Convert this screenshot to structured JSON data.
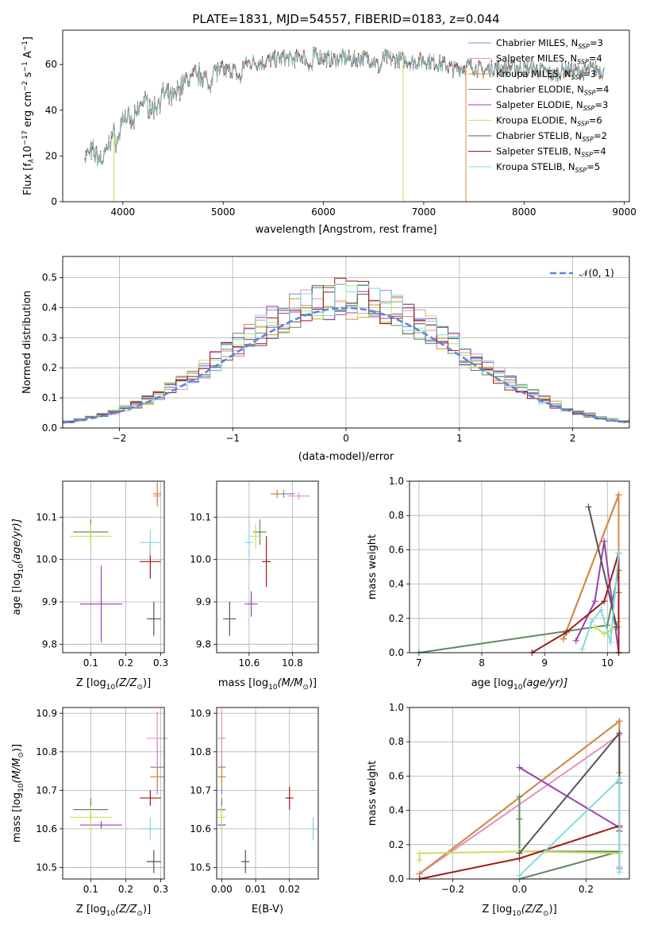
{
  "figure": {
    "title": "PLATE=1831, MJD=54557, FIBERID=0183, z=0.044",
    "series": [
      {
        "name": "Chabrier MILES",
        "nssp": "3",
        "color": "#6b8fd6"
      },
      {
        "name": "Salpeter MILES",
        "nssp": "4",
        "color": "#e58fc0"
      },
      {
        "name": "Kroupa MILES",
        "nssp": "3",
        "color": "#d88a3a"
      },
      {
        "name": "Chabrier ELODIE",
        "nssp": "4",
        "color": "#5f8a62"
      },
      {
        "name": "Salpeter ELODIE",
        "nssp": "3",
        "color": "#9b3fb4"
      },
      {
        "name": "Kroupa ELODIE",
        "nssp": "6",
        "color": "#c8e05a"
      },
      {
        "name": "Chabrier STELIB",
        "nssp": "2",
        "color": "#555555"
      },
      {
        "name": "Salpeter STELIB",
        "nssp": "4",
        "color": "#a01a1a"
      },
      {
        "name": "Kroupa STELIB",
        "nssp": "5",
        "color": "#86d8dc"
      }
    ]
  },
  "chart_data": [
    {
      "id": "spectrum",
      "type": "line",
      "xlabel": "wavelength [Angstrom, rest frame]",
      "ylabel": "Flux [f",
      "ylabel_parts": {
        "lambda_sub": "λ",
        "scale": "10",
        "scale_exp": "−17",
        "units": " erg cm",
        "cm_exp": "−2",
        "s": " s",
        "s_exp": "−1",
        "A": " A",
        "A_exp": "−1",
        "close": "]"
      },
      "xlim": [
        3400,
        9050
      ],
      "ylim": [
        0,
        75
      ],
      "xticks": [
        4000,
        5000,
        6000,
        7000,
        8000,
        9000
      ],
      "yticks": [
        0,
        20,
        40,
        60
      ],
      "legend_position": "top-right",
      "grid": false,
      "spectrum_envelope": {
        "x": [
          3620,
          3700,
          3800,
          3900,
          3950,
          4000,
          4100,
          4200,
          4300,
          4400,
          4500,
          4600,
          4700,
          4800,
          4860,
          4900,
          5000,
          5100,
          5175,
          5200,
          5300,
          5400,
          5500,
          5600,
          5700,
          5800,
          5890,
          5900,
          6000,
          6100,
          6200,
          6300,
          6400,
          6500,
          6563,
          6600,
          6700,
          6800,
          6900,
          7000,
          7100,
          7200,
          7300,
          7400,
          7500,
          7600,
          7700,
          7800,
          7900,
          8000,
          8100,
          8200,
          8300,
          8400,
          8500,
          8600,
          8700,
          8800
        ],
        "y": [
          20,
          22,
          18,
          30,
          26,
          38,
          34,
          45,
          40,
          47,
          45,
          52,
          55,
          56,
          50,
          58,
          57,
          58,
          53,
          60,
          61,
          61,
          62,
          63,
          62,
          64,
          58,
          64,
          63,
          62,
          63,
          62,
          63,
          62,
          58,
          63,
          62,
          62,
          61,
          62,
          61,
          60,
          58,
          59,
          59,
          57,
          59,
          58,
          59,
          58,
          58,
          57,
          55,
          58,
          57,
          57,
          58,
          57
        ]
      },
      "dropouts": [
        {
          "x": 3910,
          "y": 0
        },
        {
          "x": 6795,
          "y": 0
        },
        {
          "x": 7420,
          "y": 0
        }
      ]
    },
    {
      "id": "residuals",
      "type": "bar",
      "xlabel": "(data-model)/error",
      "ylabel": "Normed distribution",
      "xlim": [
        -2.5,
        2.5
      ],
      "ylim": [
        0,
        0.57
      ],
      "xticks": [
        -2,
        -1,
        0,
        1,
        2
      ],
      "yticks": [
        0.0,
        0.1,
        0.2,
        0.3,
        0.4,
        0.5
      ],
      "grid": true,
      "legend_position": "top-right",
      "gaussian_label": "𝒩(0, 1)",
      "bin_width": 0.1,
      "bin_start": -2.5
    },
    {
      "id": "age-vs-Z",
      "type": "scatter",
      "xlabel": "Z [log",
      "xlabel_tail": "(Z/Z",
      "xlabel_end": ")]",
      "ylabel": "age  [log",
      "ylabel_tail": "(age/yr)]",
      "xlim": [
        0.02,
        0.31
      ],
      "ylim": [
        9.78,
        10.185
      ],
      "xticks": [
        0.1,
        0.2,
        0.3
      ],
      "yticks": [
        9.8,
        9.9,
        10.0,
        10.1
      ],
      "grid": true,
      "points": [
        {
          "series": 0,
          "x": 0.29,
          "y": 10.155,
          "ex": 0.01,
          "ey": 0.02
        },
        {
          "series": 1,
          "x": 0.29,
          "y": 10.15,
          "ex": 0.01,
          "ey": 0.02
        },
        {
          "series": 2,
          "x": 0.29,
          "y": 10.155,
          "ex": 0.01,
          "ey": 0.03
        },
        {
          "series": 3,
          "x": 0.1,
          "y": 10.065,
          "ex": 0.05,
          "ey": 0.03
        },
        {
          "series": 4,
          "x": 0.13,
          "y": 9.895,
          "ex": 0.06,
          "ey": 0.09
        },
        {
          "series": 5,
          "x": 0.1,
          "y": 10.055,
          "ex": 0.06,
          "ey": 0.03
        },
        {
          "series": 6,
          "x": 0.28,
          "y": 9.86,
          "ex": 0.02,
          "ey": 0.04
        },
        {
          "series": 7,
          "x": 0.27,
          "y": 9.995,
          "ex": 0.03,
          "ey": 0.04
        },
        {
          "series": 8,
          "x": 0.27,
          "y": 10.04,
          "ex": 0.03,
          "ey": 0.03
        }
      ]
    },
    {
      "id": "age-vs-mass",
      "type": "scatter",
      "xlabel": "mass [log",
      "xlabel_tail": "(M/M",
      "xlabel_end": ")]",
      "xlim": [
        10.45,
        10.92
      ],
      "ylim": [
        9.78,
        10.185
      ],
      "xticks": [
        10.6,
        10.8
      ],
      "yticks": [
        9.8,
        9.9,
        10.0,
        10.1
      ],
      "grid": true,
      "points": [
        {
          "series": 0,
          "x": 10.76,
          "y": 10.155,
          "ex": 0.05,
          "ey": 0.0
        },
        {
          "series": 1,
          "x": 10.83,
          "y": 10.15,
          "ex": 0.05,
          "ey": 0.0
        },
        {
          "series": 2,
          "x": 10.73,
          "y": 10.155,
          "ex": 0.03,
          "ey": 0.01
        },
        {
          "series": 3,
          "x": 10.65,
          "y": 10.065,
          "ex": 0.03,
          "ey": 0.03
        },
        {
          "series": 4,
          "x": 10.61,
          "y": 9.895,
          "ex": 0.03,
          "ey": 0.03
        },
        {
          "series": 5,
          "x": 10.63,
          "y": 10.055,
          "ex": 0.03,
          "ey": 0.03
        },
        {
          "series": 6,
          "x": 10.51,
          "y": 9.86,
          "ex": 0.03,
          "ey": 0.04
        },
        {
          "series": 7,
          "x": 10.68,
          "y": 9.995,
          "ex": 0.02,
          "ey": 0.06
        },
        {
          "series": 8,
          "x": 10.6,
          "y": 10.04,
          "ex": 0.02,
          "ey": 0.05
        }
      ]
    },
    {
      "id": "weight-vs-age",
      "type": "line",
      "xlabel": "age  [log",
      "xlabel_tail": "(age/yr)]",
      "ylabel": "mass weight",
      "xlim": [
        6.85,
        10.35
      ],
      "ylim": [
        0,
        1.0
      ],
      "xticks": [
        7,
        8,
        9,
        10
      ],
      "yticks": [
        0.0,
        0.2,
        0.4,
        0.6,
        0.8,
        1.0
      ],
      "grid": true,
      "lines": [
        {
          "series": 0,
          "x": [
            9.3,
            10.18
          ],
          "y": [
            0.08,
            0.92
          ]
        },
        {
          "series": 1,
          "x": [
            9.3,
            10.18,
            10.18
          ],
          "y": [
            0.08,
            0.92,
            0.0
          ]
        },
        {
          "series": 2,
          "x": [
            9.3,
            10.18,
            10.18
          ],
          "y": [
            0.08,
            0.92,
            0.0
          ]
        },
        {
          "series": 3,
          "x": [
            7.0,
            10.0,
            10.18,
            10.18
          ],
          "y": [
            0.0,
            0.16,
            0.48,
            0.35
          ]
        },
        {
          "series": 4,
          "x": [
            9.5,
            9.8,
            9.95,
            10.18
          ],
          "y": [
            0.07,
            0.3,
            0.65,
            0.0
          ]
        },
        {
          "series": 5,
          "x": [
            9.8,
            9.95,
            10.05,
            10.18,
            10.18
          ],
          "y": [
            0.15,
            0.11,
            0.13,
            0.18,
            0.15
          ]
        },
        {
          "series": 6,
          "x": [
            9.7,
            10.15
          ],
          "y": [
            0.85,
            0.15
          ]
        },
        {
          "series": 7,
          "x": [
            8.8,
            9.35,
            9.95,
            10.18,
            10.18
          ],
          "y": [
            0.0,
            0.12,
            0.3,
            0.58,
            0.0
          ]
        },
        {
          "series": 8,
          "x": [
            9.6,
            9.75,
            9.9,
            10.05,
            10.18
          ],
          "y": [
            0.02,
            0.18,
            0.25,
            0.06,
            0.58
          ]
        }
      ]
    },
    {
      "id": "mass-vs-Z",
      "type": "scatter",
      "xlabel": "Z [log",
      "xlabel_tail": "(Z/Z",
      "xlabel_end": ")]",
      "ylabel": "mass [log",
      "ylabel_tail": "(M/M",
      "ylabel_end": ")]",
      "xlim": [
        0.02,
        0.31
      ],
      "ylim": [
        10.47,
        10.915
      ],
      "xticks": [
        0.1,
        0.2,
        0.3
      ],
      "yticks": [
        10.5,
        10.6,
        10.7,
        10.8,
        10.9
      ],
      "grid": true,
      "points": [
        {
          "series": 0,
          "x": 0.29,
          "y": 10.76,
          "ex": 0.02,
          "ey": 0.07
        },
        {
          "series": 1,
          "x": 0.29,
          "y": 10.835,
          "ex": 0.03,
          "ey": 0.07
        },
        {
          "series": 2,
          "x": 0.29,
          "y": 10.735,
          "ex": 0.02,
          "ey": 0.03
        },
        {
          "series": 3,
          "x": 0.1,
          "y": 10.65,
          "ex": 0.05,
          "ey": 0.03
        },
        {
          "series": 4,
          "x": 0.13,
          "y": 10.61,
          "ex": 0.06,
          "ey": 0.01
        },
        {
          "series": 5,
          "x": 0.1,
          "y": 10.63,
          "ex": 0.06,
          "ey": 0.03
        },
        {
          "series": 6,
          "x": 0.28,
          "y": 10.515,
          "ex": 0.02,
          "ey": 0.03
        },
        {
          "series": 7,
          "x": 0.27,
          "y": 10.68,
          "ex": 0.03,
          "ey": 0.02
        },
        {
          "series": 8,
          "x": 0.27,
          "y": 10.6,
          "ex": 0.03,
          "ey": 0.03
        }
      ]
    },
    {
      "id": "mass-vs-ebv",
      "type": "scatter",
      "xlabel": "E(B-V)",
      "xlim": [
        -0.0015,
        0.0285
      ],
      "ylim": [
        10.47,
        10.915
      ],
      "xticks": [
        0.0,
        0.01,
        0.02
      ],
      "xticklabels": [
        "0.00",
        "0.01",
        "0.02"
      ],
      "yticks": [
        10.5,
        10.6,
        10.7,
        10.8,
        10.9
      ],
      "grid": true,
      "points": [
        {
          "series": 0,
          "x": 0.0,
          "y": 10.76,
          "ex": 0.0,
          "ey": 0.07
        },
        {
          "series": 1,
          "x": 0.0,
          "y": 10.835,
          "ex": 0.0,
          "ey": 0.07
        },
        {
          "series": 2,
          "x": 0.0,
          "y": 10.735,
          "ex": 0.0,
          "ey": 0.03
        },
        {
          "series": 3,
          "x": 0.0,
          "y": 10.65,
          "ex": 0.0,
          "ey": 0.03
        },
        {
          "series": 4,
          "x": 0.0,
          "y": 10.61,
          "ex": 0.0,
          "ey": 0.01
        },
        {
          "series": 5,
          "x": 0.0,
          "y": 10.63,
          "ex": 0.0,
          "ey": 0.03
        },
        {
          "series": 6,
          "x": 0.007,
          "y": 10.515,
          "ex": 0.0,
          "ey": 0.03
        },
        {
          "series": 7,
          "x": 0.02,
          "y": 10.68,
          "ex": 0.0,
          "ey": 0.03
        },
        {
          "series": 8,
          "x": 0.027,
          "y": 10.6,
          "ex": 0.0,
          "ey": 0.03
        }
      ]
    },
    {
      "id": "weight-vs-Z",
      "type": "line",
      "xlabel": "Z [log",
      "xlabel_tail": "(Z/Z",
      "xlabel_end": ")]",
      "ylabel": "mass weight",
      "xlim": [
        -0.33,
        0.33
      ],
      "ylim": [
        0,
        1.0
      ],
      "xticks": [
        -0.2,
        0.0,
        0.2
      ],
      "xticklabels": [
        "−0.2",
        "0.0",
        "0.2"
      ],
      "yticks": [
        0.0,
        0.2,
        0.4,
        0.6,
        0.8,
        1.0
      ],
      "grid": true,
      "lines": [
        {
          "series": 0,
          "x": [
            -0.3,
            0.3,
            0.3
          ],
          "y": [
            0.03,
            0.92,
            0.06
          ]
        },
        {
          "series": 1,
          "x": [
            -0.3,
            0.3,
            0.3
          ],
          "y": [
            0.03,
            0.84,
            0.07
          ]
        },
        {
          "series": 2,
          "x": [
            -0.3,
            0.3,
            0.3
          ],
          "y": [
            0.03,
            0.92,
            0.62
          ]
        },
        {
          "series": 3,
          "x": [
            0.0,
            0.0,
            0.0,
            0.3,
            0.0
          ],
          "y": [
            0.48,
            0.35,
            0.16,
            0.16,
            0.0
          ]
        },
        {
          "series": 4,
          "x": [
            0.0,
            0.3
          ],
          "y": [
            0.65,
            0.3
          ]
        },
        {
          "series": 5,
          "x": [
            -0.3,
            -0.3,
            0.0,
            0.3
          ],
          "y": [
            0.11,
            0.15,
            0.16,
            0.15
          ]
        },
        {
          "series": 6,
          "x": [
            0.0,
            0.3,
            0.3
          ],
          "y": [
            0.15,
            0.85,
            0.56
          ]
        },
        {
          "series": 7,
          "x": [
            -0.3,
            0.0,
            0.3,
            0.3
          ],
          "y": [
            0.0,
            0.12,
            0.31,
            0.28
          ]
        },
        {
          "series": 8,
          "x": [
            0.0,
            0.3,
            0.3
          ],
          "y": [
            0.02,
            0.58,
            0.04
          ]
        }
      ]
    }
  ]
}
